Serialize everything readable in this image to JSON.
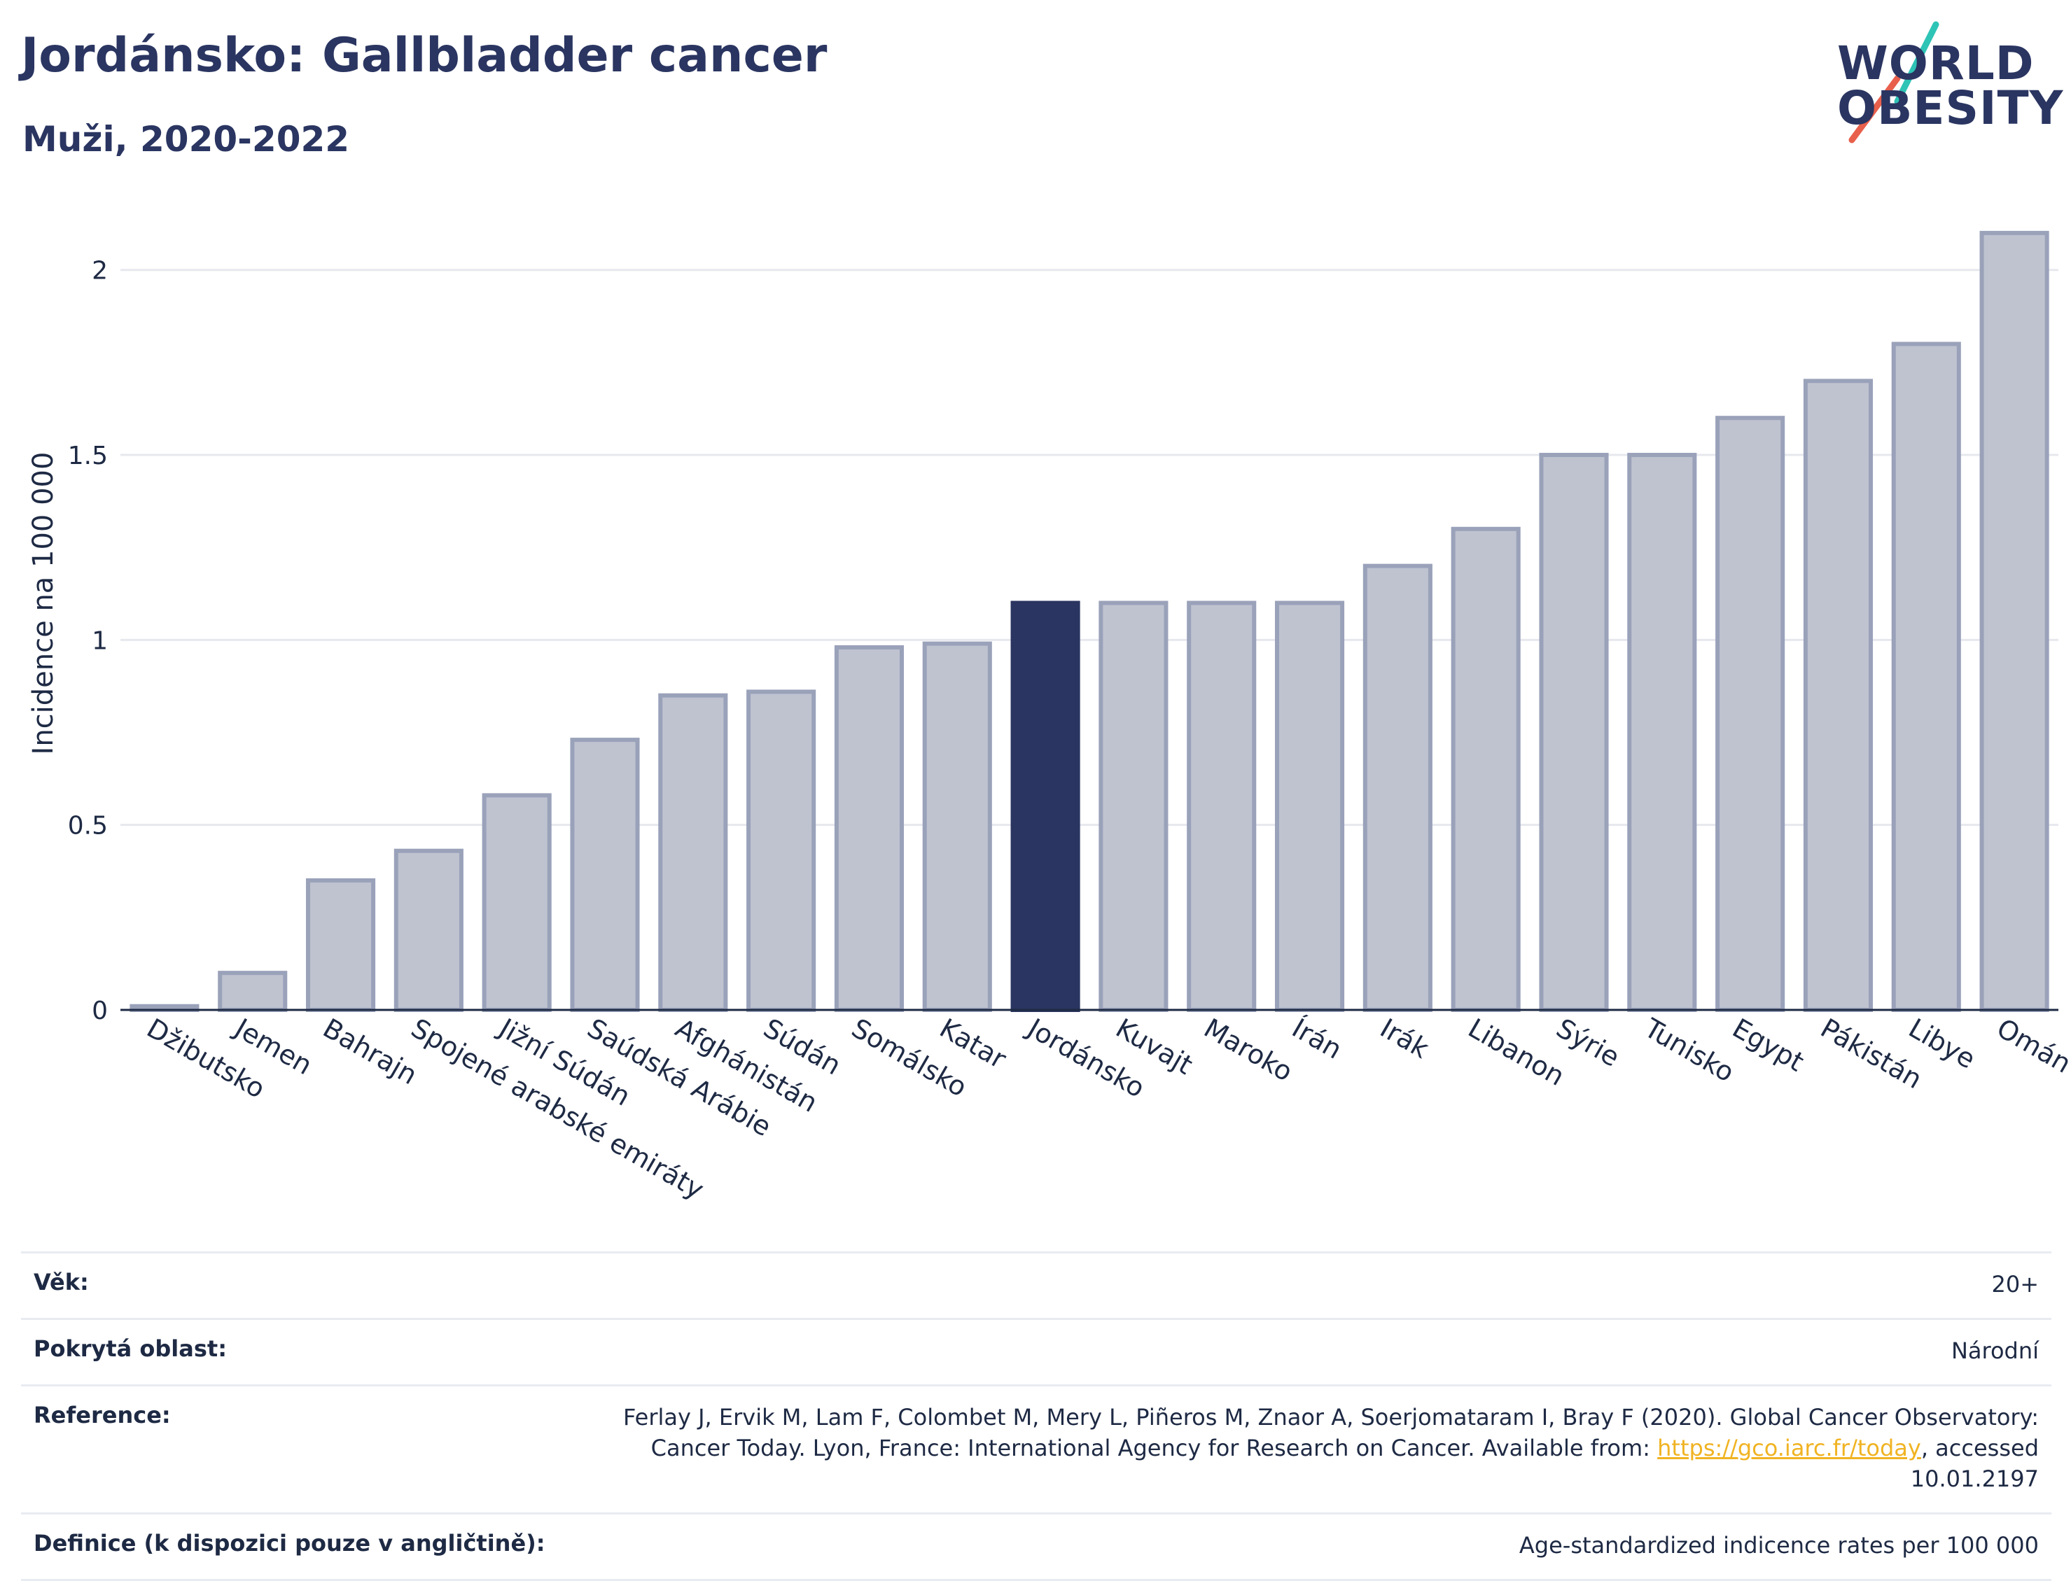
{
  "header": {
    "title": "Jordánsko: Gallbladder cancer",
    "subtitle": "Muži, 2020-2022"
  },
  "logo": {
    "line1": "WORLD",
    "line2": "OBESITY",
    "slash_colors": [
      "#2ec4b6",
      "#e8604c"
    ]
  },
  "chart_data": {
    "type": "bar",
    "categories": [
      "Džibutsko",
      "Jemen",
      "Bahrajn",
      "Spojené arabské emiráty",
      "Jižní Súdán",
      "Saúdská Arábie",
      "Afghánistán",
      "Súdán",
      "Somálsko",
      "Katar",
      "Jordánsko",
      "Kuvajt",
      "Maroko",
      "Írán",
      "Irák",
      "Libanon",
      "Sýrie",
      "Tunisko",
      "Egypt",
      "Pákistán",
      "Libye",
      "Omán"
    ],
    "values": [
      0.01,
      0.1,
      0.35,
      0.43,
      0.58,
      0.73,
      0.85,
      0.86,
      0.98,
      0.99,
      1.1,
      1.1,
      1.1,
      1.1,
      1.2,
      1.3,
      1.5,
      1.5,
      1.6,
      1.7,
      1.8,
      2.1
    ],
    "highlight": "Jordánsko",
    "ylabel": "Incidence na 100 000",
    "ylim": [
      0,
      2.2
    ],
    "yticks": [
      0,
      0.5,
      1,
      1.5,
      2
    ],
    "ytick_labels": [
      "0",
      "0.5",
      "1",
      "1.5",
      "2"
    ],
    "grid": true,
    "colors": {
      "bar": "#bfc3d0",
      "bar_border": "#9aa2ba",
      "highlight": "#2a3561",
      "grid": "#e6e8ee",
      "axis": "#1e2a44"
    }
  },
  "info": {
    "rows": [
      {
        "label": "Věk:",
        "value": "20+"
      },
      {
        "label": "Pokrytá oblast:",
        "value": "Národní"
      },
      {
        "label": "Reference:",
        "value_before": "Ferlay J, Ervik M, Lam F, Colombet M, Mery L, Piñeros M, Znaor A, Soerjomataram I, Bray F (2020). Global Cancer Observatory: Cancer Today. Lyon, France: International Agency for Research on Cancer. Available from: ",
        "link": "https://gco.iarc.fr/today",
        "value_after": ", accessed 10.01.2197"
      },
      {
        "label": "Definice (k dispozici pouze v angličtině):",
        "value": "Age-standardized indicence rates per 100 000"
      }
    ]
  }
}
